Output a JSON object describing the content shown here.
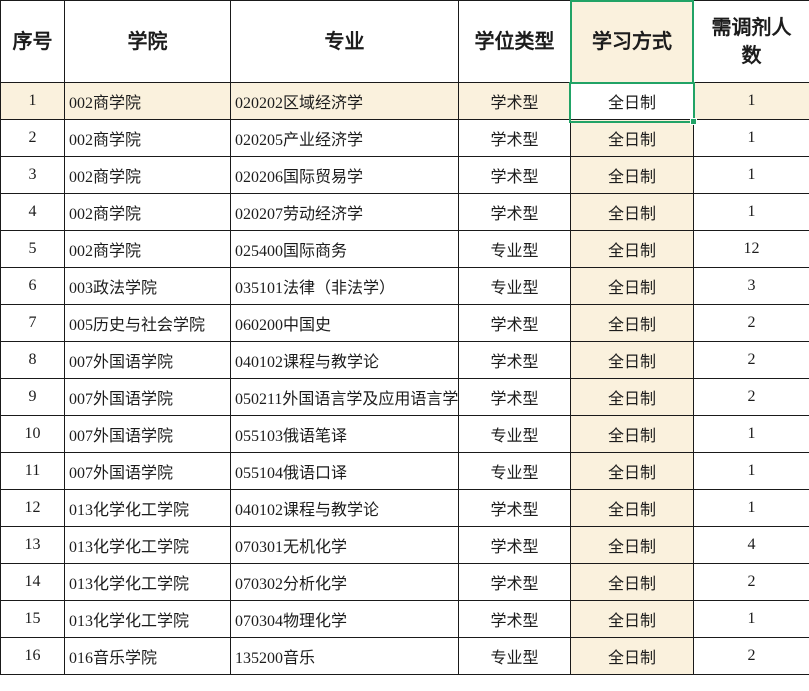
{
  "table": {
    "columns": [
      {
        "key": "index",
        "label": "序号"
      },
      {
        "key": "college",
        "label": "学院"
      },
      {
        "key": "major",
        "label": "专业"
      },
      {
        "key": "degree_type",
        "label": "学位类型"
      },
      {
        "key": "study_mode",
        "label": "学习方式"
      },
      {
        "key": "quota",
        "label": "需调剂人数"
      }
    ],
    "rows": [
      [
        "1",
        "002商学院",
        "020202区域经济学",
        "学术型",
        "全日制",
        "1"
      ],
      [
        "2",
        "002商学院",
        "020205产业经济学",
        "学术型",
        "全日制",
        "1"
      ],
      [
        "3",
        "002商学院",
        "020206国际贸易学",
        "学术型",
        "全日制",
        "1"
      ],
      [
        "4",
        "002商学院",
        "020207劳动经济学",
        "学术型",
        "全日制",
        "1"
      ],
      [
        "5",
        "002商学院",
        "025400国际商务",
        "专业型",
        "全日制",
        "12"
      ],
      [
        "6",
        "003政法学院",
        "035101法律（非法学）",
        "专业型",
        "全日制",
        "3"
      ],
      [
        "7",
        "005历史与社会学院",
        "060200中国史",
        "学术型",
        "全日制",
        "2"
      ],
      [
        "8",
        "007外国语学院",
        "040102课程与教学论",
        "学术型",
        "全日制",
        "2"
      ],
      [
        "9",
        "007外国语学院",
        "050211外国语言学及应用语言学",
        "学术型",
        "全日制",
        "2"
      ],
      [
        "10",
        "007外国语学院",
        "055103俄语笔译",
        "专业型",
        "全日制",
        "1"
      ],
      [
        "11",
        "007外国语学院",
        "055104俄语口译",
        "专业型",
        "全日制",
        "1"
      ],
      [
        "12",
        "013化学化工学院",
        "040102课程与教学论",
        "学术型",
        "全日制",
        "1"
      ],
      [
        "13",
        "013化学化工学院",
        "070301无机化学",
        "学术型",
        "全日制",
        "4"
      ],
      [
        "14",
        "013化学化工学院",
        "070302分析化学",
        "学术型",
        "全日制",
        "2"
      ],
      [
        "15",
        "013化学化工学院",
        "070304物理化学",
        "学术型",
        "全日制",
        "1"
      ],
      [
        "16",
        "016音乐学院",
        "135200音乐",
        "专业型",
        "全日制",
        "2"
      ]
    ],
    "highlighted_row_index": 0,
    "highlighted_column_index": 4
  },
  "selection": {
    "row": 1,
    "column": "study_mode",
    "value": "全日制"
  },
  "colors": {
    "highlight_fill": "#faf1dd",
    "selection_green": "#21a366",
    "grid_line": "#1a1a1a",
    "text": "#1c1c1c"
  }
}
